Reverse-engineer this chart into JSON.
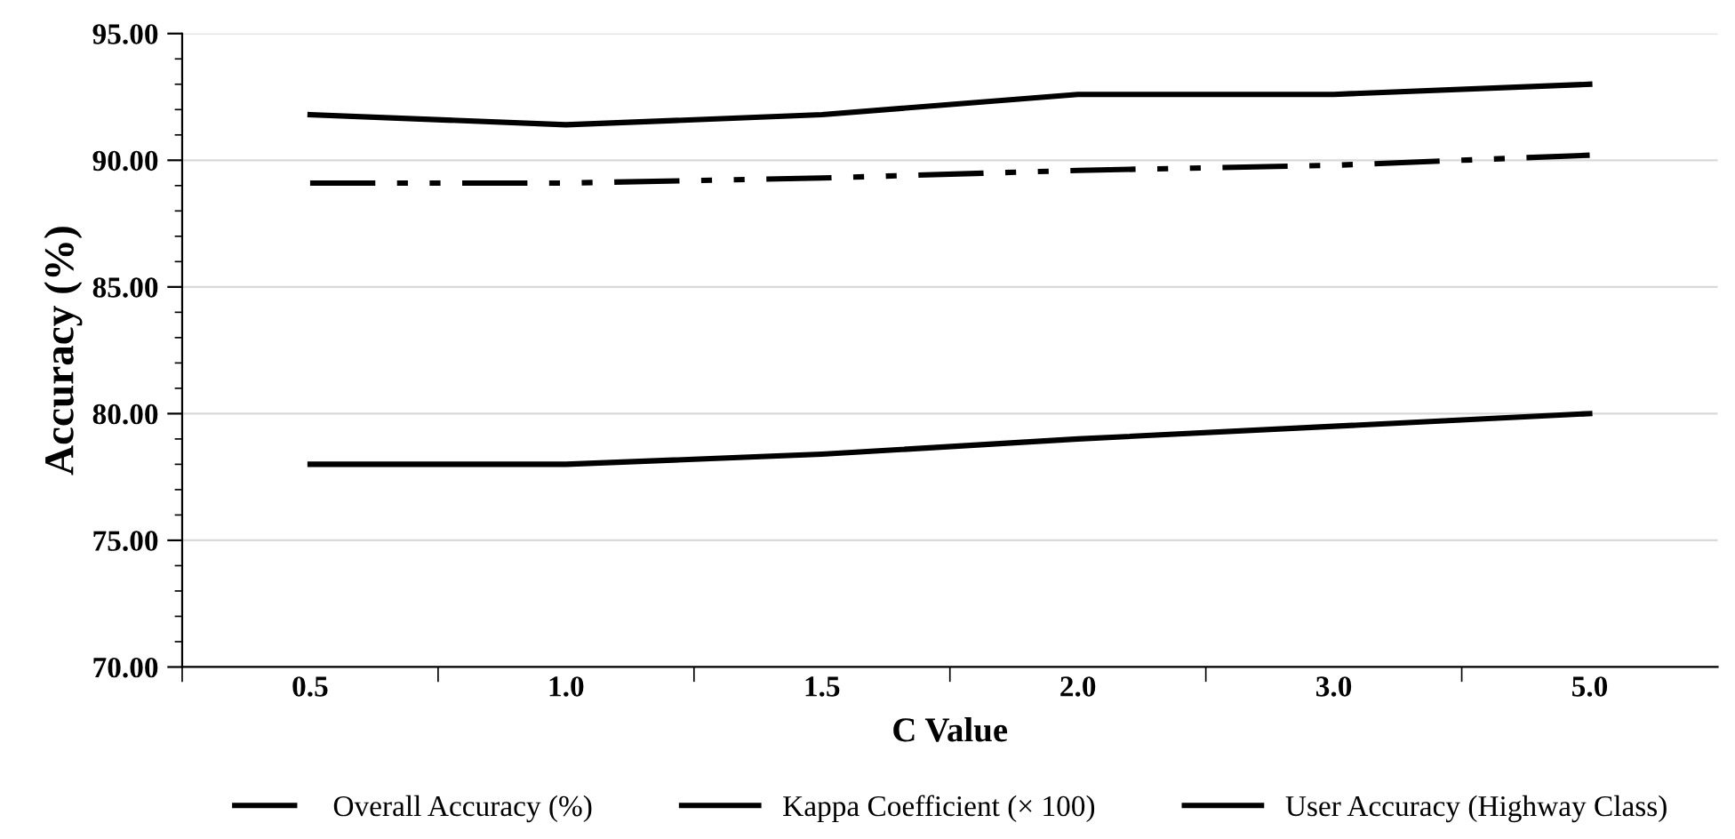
{
  "chart_data": {
    "type": "line",
    "xlabel": "C Value",
    "ylabel": "Accuracy (%)",
    "categories": [
      "0.5",
      "1.0",
      "1.5",
      "2.0",
      "3.0",
      "5.0"
    ],
    "series": [
      {
        "name": "Overall Accuracy (%)",
        "color": "#000000",
        "line_style": "dashdot",
        "values": [
          89.1,
          89.1,
          89.3,
          89.6,
          89.8,
          90.2
        ]
      },
      {
        "name": "Kappa Coefficient (× 100)",
        "color": "#000000",
        "line_style": "solid",
        "values": [
          78.0,
          78.0,
          78.4,
          79.0,
          79.5,
          80.0
        ]
      },
      {
        "name": "User Accuracy (Highway Class)",
        "color": "#000000",
        "line_style": "solid",
        "values": [
          91.8,
          91.4,
          91.8,
          92.6,
          92.6,
          93.0
        ]
      }
    ],
    "ylim": [
      70,
      95
    ],
    "yticks": [
      {
        "value": 70,
        "label": "70.00"
      },
      {
        "value": 75,
        "label": "75.00"
      },
      {
        "value": 80,
        "label": "80.00"
      },
      {
        "value": 85,
        "label": "85.00"
      },
      {
        "value": 90,
        "label": "90.00"
      },
      {
        "value": 95,
        "label": "95.00"
      }
    ],
    "grid": "y",
    "legend": "bottom",
    "marker": "none"
  }
}
